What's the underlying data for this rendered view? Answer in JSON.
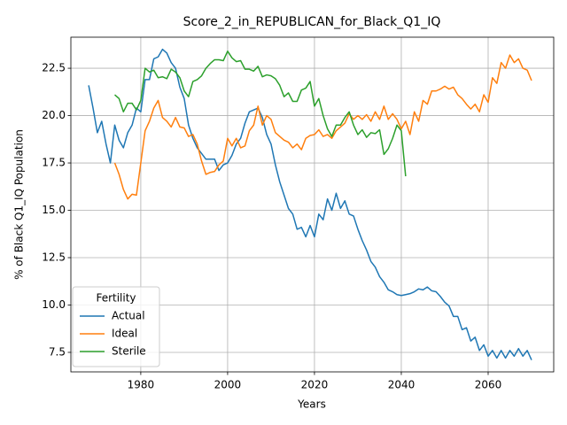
{
  "chart_data": {
    "type": "line",
    "title": "Score_2_in_REPUBLICAN_for_Black_Q1_IQ",
    "x_label": "Years",
    "y_label": "% of Black Q1_IQ Population",
    "x": [
      1968,
      1969,
      1970,
      1971,
      1972,
      1973,
      1974,
      1975,
      1976,
      1977,
      1978,
      1979,
      1980,
      1981,
      1982,
      1983,
      1984,
      1985,
      1986,
      1987,
      1988,
      1989,
      1990,
      1991,
      1992,
      1993,
      1994,
      1995,
      1996,
      1997,
      1998,
      1999,
      2000,
      2001,
      2002,
      2003,
      2004,
      2005,
      2006,
      2007,
      2008,
      2009,
      2010,
      2011,
      2012,
      2013,
      2014,
      2015,
      2016,
      2017,
      2018,
      2019,
      2020,
      2021,
      2022,
      2023,
      2024,
      2025,
      2026,
      2027,
      2028,
      2029,
      2030,
      2031,
      2032,
      2033,
      2034,
      2035,
      2036,
      2037,
      2038,
      2039,
      2040,
      2041,
      2042,
      2043,
      2044,
      2045,
      2046,
      2047,
      2048,
      2049,
      2050,
      2051,
      2052,
      2053,
      2054,
      2055,
      2056,
      2057,
      2058,
      2059,
      2060,
      2061,
      2062,
      2063,
      2064,
      2065,
      2066,
      2067,
      2068,
      2069,
      2070
    ],
    "series": [
      {
        "name": "Actual",
        "color": "#1f77b4",
        "values": [
          21.6,
          20.4,
          19.1,
          19.7,
          18.5,
          17.5,
          19.5,
          18.7,
          18.3,
          19.1,
          19.5,
          20.4,
          20.2,
          21.9,
          21.9,
          23.0,
          23.1,
          23.5,
          23.3,
          22.8,
          22.5,
          21.5,
          20.9,
          19.5,
          18.8,
          18.3,
          18.0,
          17.7,
          17.7,
          17.7,
          17.1,
          17.4,
          17.5,
          17.9,
          18.5,
          18.8,
          19.6,
          20.2,
          20.3,
          20.4,
          19.9,
          19.0,
          18.5,
          17.4,
          16.5,
          15.8,
          15.1,
          14.8,
          14.0,
          14.1,
          13.6,
          14.2,
          13.6,
          14.8,
          14.5,
          15.6,
          15.0,
          15.9,
          15.1,
          15.5,
          14.8,
          14.7,
          14.0,
          13.4,
          12.9,
          12.3,
          12.0,
          11.5,
          11.2,
          10.8,
          10.7,
          10.55,
          10.5,
          10.55,
          10.6,
          10.7,
          10.85,
          10.8,
          10.95,
          10.75,
          10.7,
          10.45,
          10.15,
          9.95,
          9.4,
          9.4,
          8.7,
          8.8,
          8.1,
          8.3,
          7.6,
          7.9,
          7.3,
          7.6,
          7.2,
          7.6,
          7.2,
          7.6,
          7.3,
          7.7,
          7.3,
          7.6,
          7.1
        ]
      },
      {
        "name": "Ideal",
        "color": "#ff7f0e",
        "values": [
          null,
          null,
          null,
          null,
          null,
          null,
          17.5,
          16.9,
          16.1,
          15.6,
          15.85,
          15.8,
          17.5,
          19.2,
          19.7,
          20.4,
          20.8,
          19.9,
          19.7,
          19.4,
          19.9,
          19.4,
          19.35,
          18.9,
          19.0,
          18.5,
          17.6,
          16.9,
          17.0,
          17.05,
          17.4,
          17.6,
          18.8,
          18.4,
          18.8,
          18.3,
          18.4,
          19.2,
          19.5,
          20.5,
          19.5,
          20.0,
          19.8,
          19.1,
          18.9,
          18.7,
          18.6,
          18.3,
          18.5,
          18.2,
          18.8,
          18.95,
          19.0,
          19.25,
          18.9,
          19.0,
          18.8,
          19.2,
          19.4,
          19.6,
          20.1,
          19.8,
          20.0,
          19.8,
          20.05,
          19.7,
          20.2,
          19.8,
          20.5,
          19.8,
          20.1,
          19.8,
          19.3,
          19.7,
          19.0,
          20.2,
          19.7,
          20.8,
          20.6,
          21.3,
          21.3,
          21.4,
          21.55,
          21.4,
          21.5,
          21.1,
          20.9,
          20.6,
          20.35,
          20.6,
          20.2,
          21.1,
          20.7,
          22.0,
          21.7,
          22.8,
          22.5,
          23.2,
          22.8,
          23.0,
          22.5,
          22.4,
          21.85
        ]
      },
      {
        "name": "Sterile",
        "color": "#2ca02c",
        "values": [
          null,
          null,
          null,
          null,
          null,
          null,
          21.1,
          20.9,
          20.2,
          20.65,
          20.65,
          20.3,
          20.8,
          22.5,
          22.3,
          22.4,
          22.0,
          22.05,
          21.95,
          22.45,
          22.3,
          22.0,
          21.3,
          21.0,
          21.8,
          21.9,
          22.1,
          22.5,
          22.75,
          22.95,
          22.95,
          22.9,
          23.4,
          23.05,
          22.85,
          22.9,
          22.45,
          22.45,
          22.35,
          22.6,
          22.05,
          22.15,
          22.1,
          21.95,
          21.6,
          21.0,
          21.2,
          20.75,
          20.75,
          21.35,
          21.45,
          21.8,
          20.5,
          20.9,
          20.0,
          19.3,
          18.9,
          19.5,
          19.5,
          19.9,
          20.2,
          19.5,
          19.0,
          19.25,
          18.85,
          19.1,
          19.05,
          19.25,
          17.95,
          18.25,
          18.8,
          19.5,
          19.2,
          16.8,
          null,
          null,
          null,
          null,
          null,
          null,
          null,
          null,
          null,
          null,
          null,
          null,
          null,
          null,
          null,
          null,
          null,
          null,
          null,
          null,
          null,
          null,
          null,
          null,
          null,
          null,
          null,
          null,
          null
        ]
      }
    ],
    "xlim": [
      1963.9,
      2075.1
    ],
    "ylim": [
      6.47,
      24.14
    ],
    "xticks": [
      1980,
      2000,
      2020,
      2040,
      2060
    ],
    "yticks": [
      7.5,
      {
        "value": 10,
        "label": "10.0"
      },
      12.5,
      {
        "value": 15,
        "label": "15.0"
      },
      17.5,
      {
        "value": 20,
        "label": "20.0"
      },
      22.5
    ],
    "grid": true,
    "legend": {
      "title": "Fertility",
      "position": "lower left"
    }
  }
}
